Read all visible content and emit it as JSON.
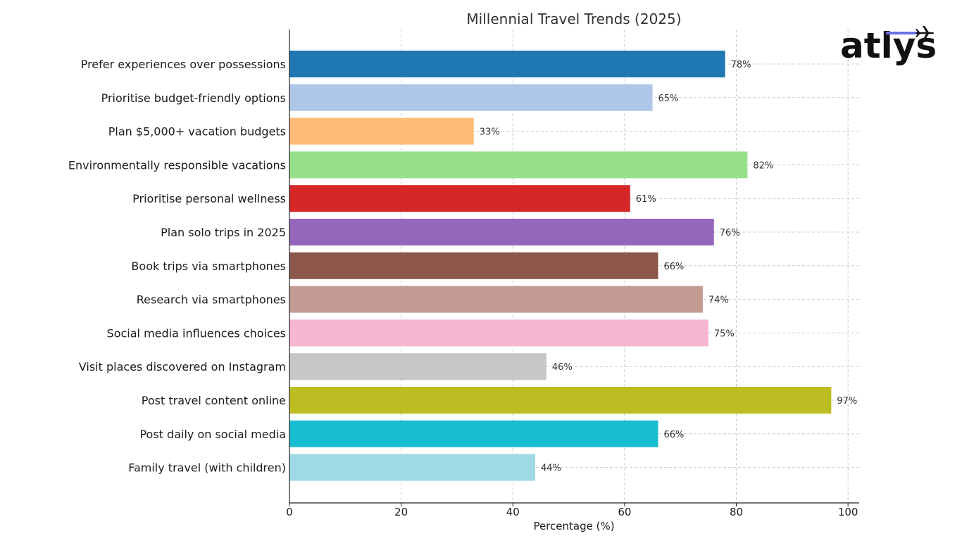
{
  "logo": {
    "text": "atlys"
  },
  "chart_data": {
    "type": "bar",
    "orientation": "horizontal",
    "title": "Millennial Travel Trends (2025)",
    "xlabel": "Percentage (%)",
    "ylabel": "",
    "xlim": [
      0,
      102
    ],
    "xticks": [
      0,
      20,
      40,
      60,
      80,
      100
    ],
    "grid": true,
    "categories": [
      "Prefer experiences over possessions",
      "Prioritise budget-friendly options",
      "Plan $5,000+ vacation budgets",
      "Environmentally responsible vacations",
      "Prioritise personal wellness",
      "Plan solo trips in 2025",
      "Book trips via smartphones",
      "Research via smartphones",
      "Social media influences choices",
      "Visit places discovered on Instagram",
      "Post travel content online",
      "Post daily on social media",
      "Family travel (with children)"
    ],
    "values": [
      78,
      65,
      33,
      82,
      61,
      76,
      66,
      74,
      75,
      46,
      97,
      66,
      44
    ],
    "value_labels": [
      "78%",
      "65%",
      "33%",
      "82%",
      "61%",
      "76%",
      "66%",
      "74%",
      "75%",
      "46%",
      "97%",
      "66%",
      "44%"
    ],
    "colors": [
      "#1f77b4",
      "#aec7e8",
      "#ffbb78",
      "#98df8a",
      "#d62728",
      "#9467bd",
      "#8c564b",
      "#c49c94",
      "#f7b6d2",
      "#c7c7c7",
      "#bcbd22",
      "#17becf",
      "#9edae5"
    ]
  }
}
